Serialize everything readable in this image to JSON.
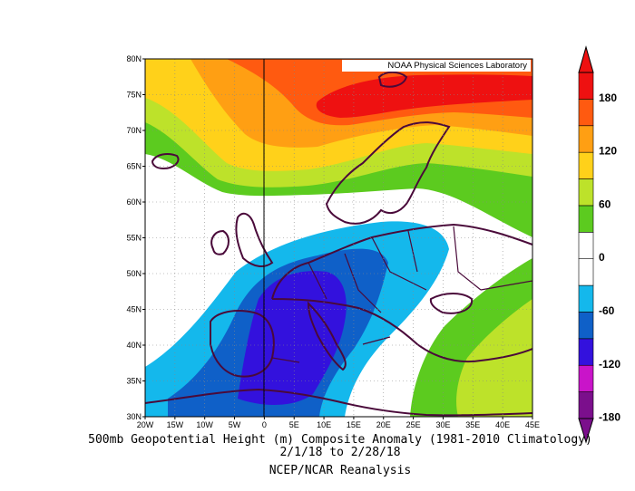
{
  "map": {
    "credit": "NOAA Physical Sciences Laboratory",
    "lat_labels": [
      "80N",
      "75N",
      "70N",
      "65N",
      "60N",
      "55N",
      "50N",
      "45N",
      "40N",
      "35N",
      "30N"
    ],
    "lon_labels": [
      "20W",
      "15W",
      "10W",
      "5W",
      "0",
      "5E",
      "10E",
      "15E",
      "20E",
      "25E",
      "30E",
      "35E",
      "40E",
      "45E"
    ],
    "lon_range": [
      -20,
      45
    ],
    "lat_range": [
      30,
      80
    ]
  },
  "colorbar": {
    "labels": [
      "180",
      "120",
      "60",
      "0",
      "-60",
      "-120",
      "-180"
    ],
    "colors": [
      "#7b0f8c",
      "#c914c9",
      "#3311dd",
      "#0f60c8",
      "#14b8ec",
      "#ffffff",
      "#ffffff",
      "#5ccb1f",
      "#bde22a",
      "#ffd11a",
      "#ff9f13",
      "#ff5a10",
      "#ee1111"
    ]
  },
  "caption": {
    "line1": "500mb Geopotential Height (m) Composite Anomaly (1981-2010 Climatology)",
    "line2": "2/1/18  to  2/28/18",
    "line3": "NCEP/NCAR Reanalysis"
  }
}
